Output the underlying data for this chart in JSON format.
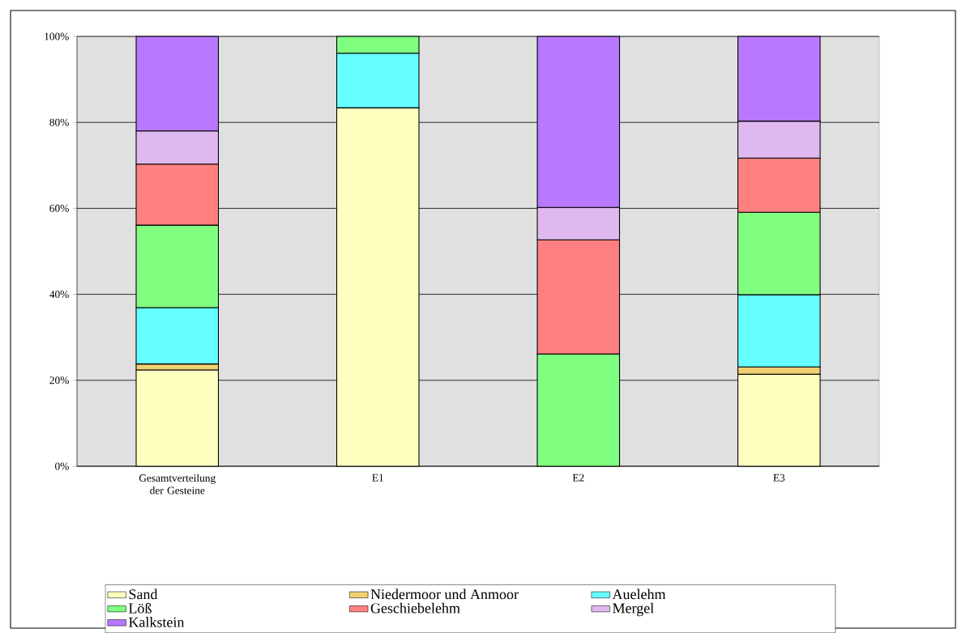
{
  "chart_data": {
    "type": "bar",
    "stacked": true,
    "categories": [
      "Gesamtverteilung der Gesteine",
      "E1",
      "E2",
      "E3"
    ],
    "series": [
      {
        "name": "Sand",
        "color": "#ffffc0",
        "values": [
          22.4,
          83.4,
          null,
          21.4
        ]
      },
      {
        "name": "Niedermoor und Anmoor",
        "color": "#f0d070",
        "values": [
          1.4,
          null,
          null,
          1.7
        ]
      },
      {
        "name": "Auelehm",
        "color": "#66ffff",
        "values": [
          13.1,
          12.7,
          null,
          16.8
        ]
      },
      {
        "name": "Löß",
        "color": "#80ff80",
        "values": [
          19.2,
          3.9,
          26.1,
          19.2
        ]
      },
      {
        "name": "Geschiebelehm",
        "color": "#ff8080",
        "values": [
          14.2,
          null,
          26.6,
          12.6
        ]
      },
      {
        "name": "Mergel",
        "color": "#e0b8f0",
        "values": [
          7.7,
          null,
          7.5,
          8.6
        ]
      },
      {
        "name": "Kalkstein",
        "color": "#b878ff",
        "values": [
          22.0,
          null,
          39.8,
          19.7
        ]
      }
    ],
    "ylim": [
      0,
      100
    ],
    "yticks": [
      {
        "value": 0,
        "label": "0%"
      },
      {
        "value": 20,
        "label": "20%"
      },
      {
        "value": 40,
        "label": "40%"
      },
      {
        "value": 60,
        "label": "60%"
      },
      {
        "value": 80,
        "label": "80%"
      },
      {
        "value": 100,
        "label": "100%"
      }
    ],
    "grid": "y",
    "legend": "bottom"
  }
}
